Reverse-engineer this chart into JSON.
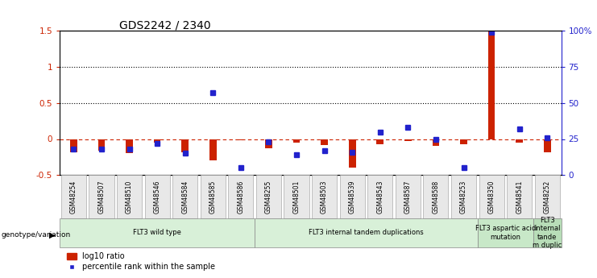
{
  "title": "GDS2242 / 2340",
  "samples": [
    "GSM48254",
    "GSM48507",
    "GSM48510",
    "GSM48546",
    "GSM48584",
    "GSM48585",
    "GSM48586",
    "GSM48255",
    "GSM48501",
    "GSM48503",
    "GSM48539",
    "GSM48543",
    "GSM48587",
    "GSM48588",
    "GSM48253",
    "GSM48350",
    "GSM48541",
    "GSM48252"
  ],
  "log10_ratio": [
    -0.18,
    -0.16,
    -0.2,
    -0.05,
    -0.18,
    -0.3,
    -0.02,
    -0.13,
    -0.05,
    -0.08,
    -0.4,
    -0.07,
    -0.03,
    -0.1,
    -0.07,
    1.5,
    -0.05,
    -0.18
  ],
  "percentile_rank": [
    18,
    18,
    18,
    22,
    15,
    57,
    5,
    23,
    14,
    17,
    16,
    30,
    33,
    25,
    5,
    99,
    32,
    26
  ],
  "groups": [
    {
      "label": "FLT3 wild type",
      "start": 0,
      "end": 7,
      "color": "#d8f0d8"
    },
    {
      "label": "FLT3 internal tandem duplications",
      "start": 7,
      "end": 15,
      "color": "#d8f0d8"
    },
    {
      "label": "FLT3 aspartic acid\nmutation",
      "start": 15,
      "end": 17,
      "color": "#c8e8c8"
    },
    {
      "label": "FLT3\ninternal\ntande\nm duplic",
      "start": 17,
      "end": 18,
      "color": "#b8ddb8"
    }
  ],
  "ylim_left": [
    -0.5,
    1.5
  ],
  "ylim_right": [
    0,
    100
  ],
  "yticks_left": [
    -0.5,
    0.0,
    0.5,
    1.0,
    1.5
  ],
  "yticks_left_labels": [
    "-0.5",
    "0",
    "0.5",
    "1",
    "1.5"
  ],
  "yticks_right": [
    0,
    25,
    50,
    75,
    100
  ],
  "yticks_right_labels": [
    "0",
    "25",
    "50",
    "75",
    "100%"
  ],
  "hlines": [
    0.5,
    1.0
  ],
  "bar_color": "#cc2200",
  "dot_color": "#2222cc",
  "dashed_line_color": "#cc2200",
  "background_color": "#ffffff",
  "genotype_label": "genotype/variation"
}
